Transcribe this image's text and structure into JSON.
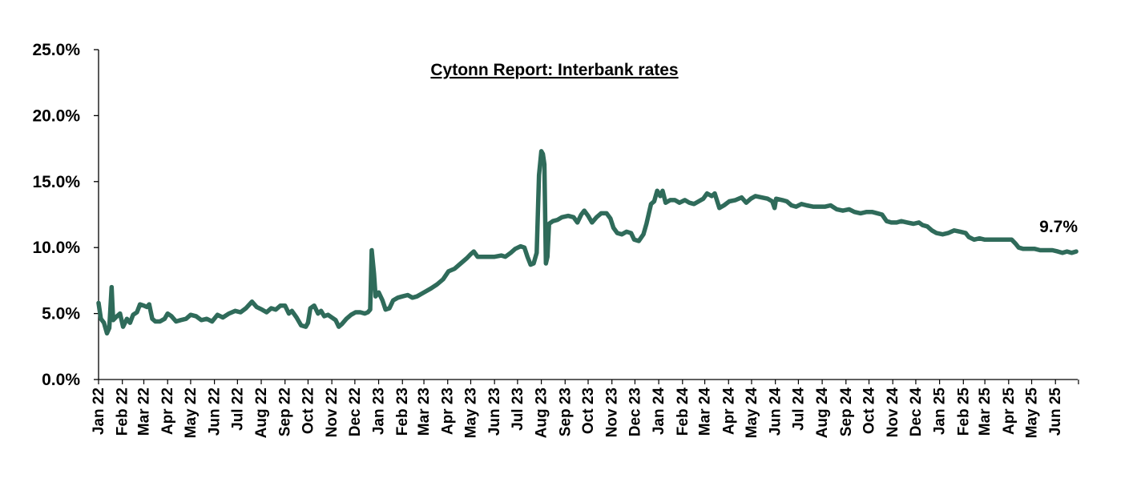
{
  "chart_data": {
    "type": "line",
    "title": "Cytonn Report: Interbank rates",
    "xlabel": "",
    "ylabel": "",
    "ylim": [
      0,
      25
    ],
    "y_ticks": [
      "0.0%",
      "5.0%",
      "10.0%",
      "15.0%",
      "20.0%",
      "25.0%"
    ],
    "x_ticks": [
      "Jan 22",
      "Feb 22",
      "Mar 22",
      "Apr 22",
      "May 22",
      "Jun 22",
      "Jul 22",
      "Aug 22",
      "Sep 22",
      "Oct 22",
      "Nov 22",
      "Dec 22",
      "Jan 23",
      "Feb 23",
      "Mar 23",
      "Apr 23",
      "May 23",
      "Jun 23",
      "Jul 23",
      "Aug 23",
      "Sep 23",
      "Oct 23",
      "Nov 23",
      "Dec 23",
      "Jan 24",
      "Feb 24",
      "Mar 24",
      "Apr 24",
      "May 24",
      "Jun 24",
      "Jul 24",
      "Aug 24",
      "Sep 24",
      "Oct 24",
      "Nov 24",
      "Dec 24",
      "Jan 25",
      "Feb 25",
      "Mar 25",
      "Apr 25",
      "May 25",
      "Jun 25"
    ],
    "grid": false,
    "legend": "none",
    "series": [
      {
        "color": "#2f6b5a",
        "points": [
          [
            "2022-01-01",
            5.8
          ],
          [
            "2022-01-04",
            4.6
          ],
          [
            "2022-01-08",
            4.3
          ],
          [
            "2022-01-12",
            3.5
          ],
          [
            "2022-01-15",
            3.9
          ],
          [
            "2022-01-18",
            7.0
          ],
          [
            "2022-01-20",
            4.5
          ],
          [
            "2022-01-25",
            4.8
          ],
          [
            "2022-01-29",
            5.0
          ],
          [
            "2022-02-02",
            4.0
          ],
          [
            "2022-02-07",
            4.6
          ],
          [
            "2022-02-11",
            4.3
          ],
          [
            "2022-02-15",
            4.9
          ],
          [
            "2022-02-20",
            5.1
          ],
          [
            "2022-02-24",
            5.7
          ],
          [
            "2022-03-01",
            5.6
          ],
          [
            "2022-03-05",
            5.5
          ],
          [
            "2022-03-08",
            5.7
          ],
          [
            "2022-03-12",
            4.6
          ],
          [
            "2022-03-16",
            4.4
          ],
          [
            "2022-03-22",
            4.4
          ],
          [
            "2022-03-28",
            4.6
          ],
          [
            "2022-04-01",
            5.0
          ],
          [
            "2022-04-06",
            4.8
          ],
          [
            "2022-04-12",
            4.4
          ],
          [
            "2022-04-18",
            4.5
          ],
          [
            "2022-04-25",
            4.6
          ],
          [
            "2022-05-01",
            4.9
          ],
          [
            "2022-05-08",
            4.8
          ],
          [
            "2022-05-15",
            4.5
          ],
          [
            "2022-05-22",
            4.6
          ],
          [
            "2022-05-29",
            4.4
          ],
          [
            "2022-06-05",
            4.9
          ],
          [
            "2022-06-12",
            4.7
          ],
          [
            "2022-06-20",
            5.0
          ],
          [
            "2022-06-28",
            5.2
          ],
          [
            "2022-07-05",
            5.1
          ],
          [
            "2022-07-12",
            5.4
          ],
          [
            "2022-07-20",
            5.9
          ],
          [
            "2022-07-26",
            5.5
          ],
          [
            "2022-08-02",
            5.3
          ],
          [
            "2022-08-08",
            5.1
          ],
          [
            "2022-08-14",
            5.4
          ],
          [
            "2022-08-20",
            5.3
          ],
          [
            "2022-08-26",
            5.6
          ],
          [
            "2022-09-01",
            5.6
          ],
          [
            "2022-09-06",
            5.0
          ],
          [
            "2022-09-10",
            5.2
          ],
          [
            "2022-09-16",
            4.7
          ],
          [
            "2022-09-22",
            4.1
          ],
          [
            "2022-09-28",
            4.0
          ],
          [
            "2022-10-01",
            4.3
          ],
          [
            "2022-10-04",
            5.4
          ],
          [
            "2022-10-09",
            5.6
          ],
          [
            "2022-10-14",
            5.0
          ],
          [
            "2022-10-18",
            5.2
          ],
          [
            "2022-10-22",
            4.8
          ],
          [
            "2022-10-27",
            4.9
          ],
          [
            "2022-11-01",
            4.7
          ],
          [
            "2022-11-06",
            4.5
          ],
          [
            "2022-11-10",
            4.0
          ],
          [
            "2022-11-14",
            4.2
          ],
          [
            "2022-11-20",
            4.6
          ],
          [
            "2022-11-26",
            4.9
          ],
          [
            "2022-12-02",
            5.1
          ],
          [
            "2022-12-08",
            5.1
          ],
          [
            "2022-12-14",
            5.0
          ],
          [
            "2022-12-18",
            5.1
          ],
          [
            "2022-12-21",
            5.3
          ],
          [
            "2022-12-23",
            9.8
          ],
          [
            "2022-12-26",
            8.0
          ],
          [
            "2022-12-28",
            6.3
          ],
          [
            "2023-01-01",
            6.6
          ],
          [
            "2023-01-06",
            6.0
          ],
          [
            "2023-01-10",
            5.3
          ],
          [
            "2023-01-15",
            5.4
          ],
          [
            "2023-01-20",
            6.0
          ],
          [
            "2023-01-26",
            6.2
          ],
          [
            "2023-02-01",
            6.3
          ],
          [
            "2023-02-08",
            6.4
          ],
          [
            "2023-02-14",
            6.2
          ],
          [
            "2023-02-20",
            6.3
          ],
          [
            "2023-02-26",
            6.5
          ],
          [
            "2023-03-04",
            6.7
          ],
          [
            "2023-03-10",
            6.9
          ],
          [
            "2023-03-18",
            7.2
          ],
          [
            "2023-03-26",
            7.6
          ],
          [
            "2023-04-02",
            8.2
          ],
          [
            "2023-04-10",
            8.4
          ],
          [
            "2023-04-18",
            8.8
          ],
          [
            "2023-04-26",
            9.2
          ],
          [
            "2023-05-01",
            9.5
          ],
          [
            "2023-05-05",
            9.7
          ],
          [
            "2023-05-10",
            9.3
          ],
          [
            "2023-05-20",
            9.3
          ],
          [
            "2023-06-01",
            9.3
          ],
          [
            "2023-06-10",
            9.4
          ],
          [
            "2023-06-15",
            9.3
          ],
          [
            "2023-06-22",
            9.6
          ],
          [
            "2023-06-28",
            9.9
          ],
          [
            "2023-07-05",
            10.1
          ],
          [
            "2023-07-10",
            10.0
          ],
          [
            "2023-07-14",
            9.3
          ],
          [
            "2023-07-18",
            8.7
          ],
          [
            "2023-07-22",
            8.8
          ],
          [
            "2023-07-26",
            9.6
          ],
          [
            "2023-07-29",
            15.5
          ],
          [
            "2023-08-01",
            17.3
          ],
          [
            "2023-08-03",
            17.1
          ],
          [
            "2023-08-05",
            16.3
          ],
          [
            "2023-08-07",
            8.8
          ],
          [
            "2023-08-09",
            9.3
          ],
          [
            "2023-08-11",
            11.8
          ],
          [
            "2023-08-16",
            12.0
          ],
          [
            "2023-08-22",
            12.1
          ],
          [
            "2023-08-28",
            12.3
          ],
          [
            "2023-09-05",
            12.4
          ],
          [
            "2023-09-12",
            12.3
          ],
          [
            "2023-09-17",
            11.9
          ],
          [
            "2023-09-22",
            12.5
          ],
          [
            "2023-09-26",
            12.8
          ],
          [
            "2023-10-01",
            12.4
          ],
          [
            "2023-10-06",
            11.9
          ],
          [
            "2023-10-12",
            12.3
          ],
          [
            "2023-10-18",
            12.6
          ],
          [
            "2023-10-25",
            12.6
          ],
          [
            "2023-10-30",
            12.2
          ],
          [
            "2023-11-03",
            11.5
          ],
          [
            "2023-11-08",
            11.1
          ],
          [
            "2023-11-14",
            11.0
          ],
          [
            "2023-11-20",
            11.2
          ],
          [
            "2023-11-26",
            11.1
          ],
          [
            "2023-11-30",
            10.6
          ],
          [
            "2023-12-06",
            10.5
          ],
          [
            "2023-12-12",
            11.0
          ],
          [
            "2023-12-16",
            11.8
          ],
          [
            "2023-12-22",
            13.3
          ],
          [
            "2023-12-26",
            13.5
          ],
          [
            "2023-12-30",
            14.3
          ],
          [
            "2024-01-03",
            13.9
          ],
          [
            "2024-01-06",
            14.3
          ],
          [
            "2024-01-10",
            13.4
          ],
          [
            "2024-01-16",
            13.6
          ],
          [
            "2024-01-22",
            13.6
          ],
          [
            "2024-01-28",
            13.4
          ],
          [
            "2024-02-04",
            13.6
          ],
          [
            "2024-02-10",
            13.4
          ],
          [
            "2024-02-16",
            13.3
          ],
          [
            "2024-02-22",
            13.5
          ],
          [
            "2024-02-28",
            13.7
          ],
          [
            "2024-03-04",
            14.1
          ],
          [
            "2024-03-10",
            13.9
          ],
          [
            "2024-03-14",
            14.1
          ],
          [
            "2024-03-20",
            13.0
          ],
          [
            "2024-03-26",
            13.2
          ],
          [
            "2024-04-02",
            13.5
          ],
          [
            "2024-04-10",
            13.6
          ],
          [
            "2024-04-18",
            13.8
          ],
          [
            "2024-04-24",
            13.4
          ],
          [
            "2024-04-30",
            13.7
          ],
          [
            "2024-05-06",
            13.9
          ],
          [
            "2024-05-14",
            13.8
          ],
          [
            "2024-05-22",
            13.7
          ],
          [
            "2024-05-28",
            13.5
          ],
          [
            "2024-05-31",
            13.0
          ],
          [
            "2024-06-02",
            13.7
          ],
          [
            "2024-06-10",
            13.6
          ],
          [
            "2024-06-16",
            13.5
          ],
          [
            "2024-06-22",
            13.2
          ],
          [
            "2024-06-28",
            13.1
          ],
          [
            "2024-07-05",
            13.3
          ],
          [
            "2024-07-12",
            13.2
          ],
          [
            "2024-07-20",
            13.1
          ],
          [
            "2024-07-28",
            13.1
          ],
          [
            "2024-08-05",
            13.1
          ],
          [
            "2024-08-12",
            13.2
          ],
          [
            "2024-08-20",
            12.9
          ],
          [
            "2024-08-28",
            12.8
          ],
          [
            "2024-09-05",
            12.9
          ],
          [
            "2024-09-12",
            12.7
          ],
          [
            "2024-09-20",
            12.6
          ],
          [
            "2024-09-28",
            12.7
          ],
          [
            "2024-10-05",
            12.7
          ],
          [
            "2024-10-12",
            12.6
          ],
          [
            "2024-10-18",
            12.5
          ],
          [
            "2024-10-24",
            12.0
          ],
          [
            "2024-10-30",
            11.9
          ],
          [
            "2024-11-06",
            11.9
          ],
          [
            "2024-11-12",
            12.0
          ],
          [
            "2024-11-20",
            11.9
          ],
          [
            "2024-11-28",
            11.8
          ],
          [
            "2024-12-05",
            11.9
          ],
          [
            "2024-12-10",
            11.7
          ],
          [
            "2024-12-16",
            11.6
          ],
          [
            "2024-12-22",
            11.3
          ],
          [
            "2024-12-28",
            11.1
          ],
          [
            "2025-01-05",
            11.0
          ],
          [
            "2025-01-12",
            11.1
          ],
          [
            "2025-01-20",
            11.3
          ],
          [
            "2025-01-28",
            11.2
          ],
          [
            "2025-02-04",
            11.1
          ],
          [
            "2025-02-08",
            10.8
          ],
          [
            "2025-02-15",
            10.6
          ],
          [
            "2025-02-22",
            10.7
          ],
          [
            "2025-03-01",
            10.6
          ],
          [
            "2025-03-10",
            10.6
          ],
          [
            "2025-03-20",
            10.6
          ],
          [
            "2025-03-28",
            10.6
          ],
          [
            "2025-04-05",
            10.6
          ],
          [
            "2025-04-10",
            10.3
          ],
          [
            "2025-04-14",
            10.0
          ],
          [
            "2025-04-20",
            9.9
          ],
          [
            "2025-04-28",
            9.9
          ],
          [
            "2025-05-05",
            9.9
          ],
          [
            "2025-05-12",
            9.8
          ],
          [
            "2025-05-20",
            9.8
          ],
          [
            "2025-05-28",
            9.8
          ],
          [
            "2025-06-04",
            9.7
          ],
          [
            "2025-06-10",
            9.6
          ],
          [
            "2025-06-16",
            9.7
          ],
          [
            "2025-06-22",
            9.6
          ],
          [
            "2025-06-28",
            9.7
          ]
        ]
      }
    ],
    "annotations": [
      {
        "text": "9.7%",
        "date": "2025-06-28",
        "value": 9.7
      }
    ]
  }
}
